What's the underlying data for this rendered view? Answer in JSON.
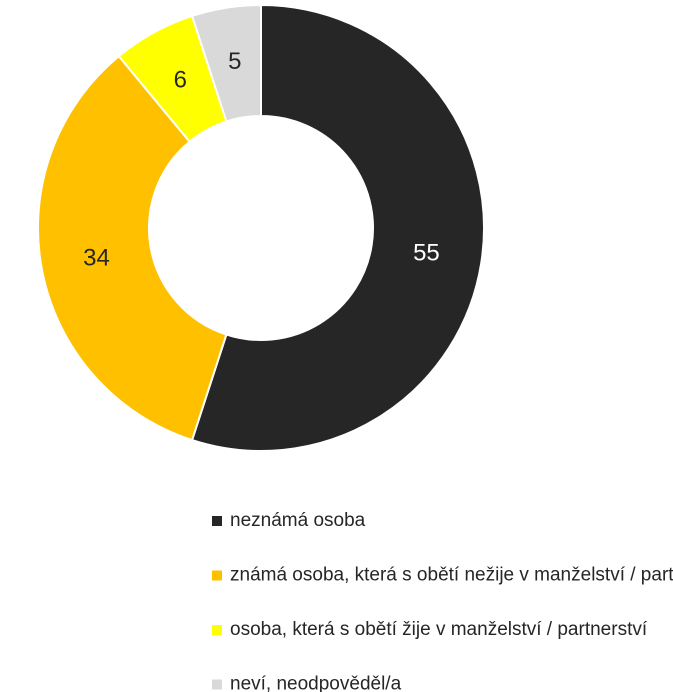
{
  "chart_data": {
    "type": "pie",
    "donut": true,
    "categories": [
      "neznámá osoba",
      "známá osoba, která s obětí nežije v manželství / partnerství",
      "osoba, která s obětí žije v manželství / partnerství",
      "neví, neodpověděl/a"
    ],
    "values": [
      55,
      34,
      6,
      5
    ],
    "colors": [
      "#262626",
      "#ffc000",
      "#ffff00",
      "#d9d9d9"
    ],
    "label_colors": [
      "#ffffff",
      "#262626",
      "#262626",
      "#262626"
    ],
    "legend": "bottom"
  }
}
